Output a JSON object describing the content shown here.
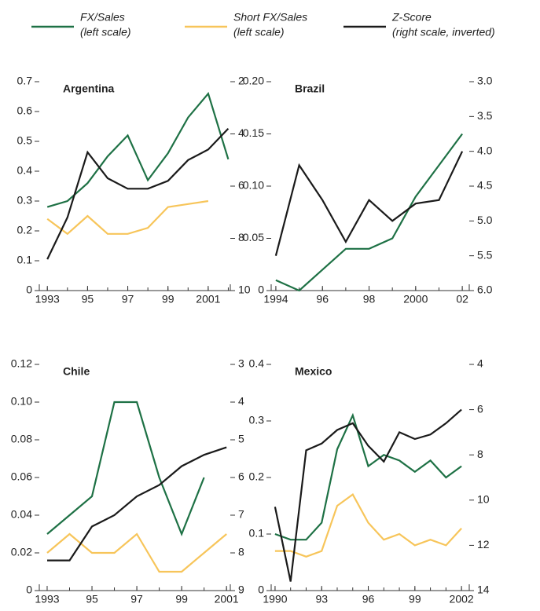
{
  "legend": [
    {
      "name": "FX/Sales",
      "note": "(left scale)",
      "color": "#1e7145"
    },
    {
      "name": "Short FX/Sales",
      "note": "(left scale)",
      "color": "#f7c55a"
    },
    {
      "name": "Z-Score",
      "note": "(right scale, inverted)",
      "color": "#1a1a1a"
    }
  ],
  "chart_data": [
    {
      "type": "line",
      "title": "Argentina",
      "x": [
        1993,
        1994,
        1995,
        1996,
        1997,
        1998,
        1999,
        2000,
        2001,
        2002
      ],
      "xlim": [
        1992.6,
        2002.1
      ],
      "xticks": [
        1993,
        {
          "value": 1995,
          "label": "95"
        },
        {
          "value": 1997,
          "label": "97"
        },
        {
          "value": 1999,
          "label": "99"
        },
        2001
      ],
      "ylim": [
        0,
        0.7
      ],
      "yticks": [
        0,
        0.1,
        0.2,
        0.3,
        0.4,
        0.5,
        0.6,
        0.7
      ],
      "y2lim": [
        2,
        10
      ],
      "y2ticks": [
        2,
        4,
        6,
        8,
        10
      ],
      "y2_inverted": true,
      "series": [
        {
          "color": "#1e7145",
          "axis": "y",
          "values": [
            0.28,
            0.3,
            0.36,
            0.45,
            0.52,
            0.37,
            0.46,
            0.58,
            0.66,
            0.44
          ]
        },
        {
          "color": "#f7c55a",
          "axis": "y",
          "values": [
            0.24,
            0.19,
            0.25,
            0.19,
            0.19,
            0.21,
            0.28,
            0.29,
            0.3,
            null
          ]
        },
        {
          "color": "#1a1a1a",
          "axis": "y2",
          "values": [
            8.8,
            7.2,
            4.7,
            5.7,
            6.1,
            6.1,
            5.8,
            5.0,
            4.6,
            3.8
          ]
        }
      ]
    },
    {
      "type": "line",
      "title": "Brazil",
      "x": [
        1994,
        1995,
        1996,
        1997,
        1998,
        1999,
        2000,
        2001,
        2002
      ],
      "xlim": [
        1993.8,
        2002.3
      ],
      "xticks": [
        1994,
        {
          "value": 1996,
          "label": "96"
        },
        {
          "value": 1998,
          "label": "98"
        },
        2000,
        {
          "value": 2002,
          "label": "02"
        }
      ],
      "ylim": [
        0,
        0.2
      ],
      "yticks": [
        0,
        0.05,
        {
          "value": 0.1,
          "label": "0.10"
        },
        0.15,
        {
          "value": 0.2,
          "label": "0.20"
        }
      ],
      "y2lim": [
        3,
        6
      ],
      "y2ticks": [
        {
          "value": 3,
          "label": "3.0"
        },
        3.5,
        {
          "value": 4,
          "label": "4.0"
        },
        4.5,
        {
          "value": 5,
          "label": "5.0"
        },
        5.5,
        {
          "value": 6,
          "label": "6.0"
        }
      ],
      "y2_inverted": true,
      "series": [
        {
          "color": "#1e7145",
          "axis": "y",
          "values": [
            0.01,
            0,
            0.02,
            0.04,
            0.04,
            0.05,
            0.09,
            0.12,
            0.15
          ]
        },
        {
          "color": "#1a1a1a",
          "axis": "y2",
          "values": [
            5.5,
            4.2,
            4.7,
            5.3,
            4.7,
            5.0,
            4.75,
            4.7,
            4.0
          ]
        }
      ]
    },
    {
      "type": "line",
      "title": "Chile",
      "x": [
        1993,
        1994,
        1995,
        1996,
        1997,
        1998,
        1999,
        2000,
        2001
      ],
      "xlim": [
        1992.65,
        2001.17
      ],
      "xticks": [
        1993,
        {
          "value": 1995,
          "label": "95"
        },
        {
          "value": 1997,
          "label": "97"
        },
        {
          "value": 1999,
          "label": "99"
        },
        2001
      ],
      "ylim": [
        0,
        0.12
      ],
      "yticks": [
        0,
        0.02,
        0.04,
        0.06,
        0.08,
        {
          "value": 0.1,
          "label": "0.10"
        },
        0.12
      ],
      "y2lim": [
        3,
        9
      ],
      "y2ticks": [
        3,
        4,
        5,
        6,
        7,
        8,
        9
      ],
      "y2_inverted": true,
      "series": [
        {
          "color": "#1e7145",
          "axis": "y",
          "values": [
            0.03,
            0.04,
            0.05,
            0.1,
            0.1,
            0.06,
            0.03,
            0.06,
            null
          ]
        },
        {
          "color": "#f7c55a",
          "axis": "y",
          "values": [
            0.02,
            0.03,
            0.02,
            0.02,
            0.03,
            0.01,
            0.01,
            0.02,
            0.03
          ]
        },
        {
          "color": "#1a1a1a",
          "axis": "y2",
          "values": [
            8.2,
            8.2,
            7.3,
            7.0,
            6.5,
            6.2,
            5.7,
            5.4,
            5.2
          ]
        }
      ]
    },
    {
      "type": "line",
      "title": "Mexico",
      "x": [
        1990,
        1991,
        1992,
        1993,
        1994,
        1995,
        1996,
        1997,
        1998,
        1999,
        2000,
        2001,
        2002
      ],
      "xlim": [
        1989.75,
        2002.5
      ],
      "xticks": [
        1990,
        {
          "value": 1993,
          "label": "93"
        },
        {
          "value": 1996,
          "label": "96"
        },
        {
          "value": 1999,
          "label": "99"
        },
        2002
      ],
      "ylim": [
        0,
        0.4
      ],
      "yticks": [
        0,
        0.1,
        0.2,
        0.3,
        0.4
      ],
      "y2lim": [
        4,
        14
      ],
      "y2ticks": [
        4,
        6,
        8,
        10,
        12,
        14
      ],
      "y2_inverted": true,
      "series": [
        {
          "color": "#1e7145",
          "axis": "y",
          "values": [
            0.1,
            0.09,
            0.09,
            0.12,
            0.25,
            0.31,
            0.22,
            0.24,
            0.23,
            0.21,
            0.23,
            0.2,
            0.22
          ]
        },
        {
          "color": "#f7c55a",
          "axis": "y",
          "values": [
            0.07,
            0.07,
            0.06,
            0.07,
            0.15,
            0.17,
            0.12,
            0.09,
            0.1,
            0.08,
            0.09,
            0.08,
            0.11
          ]
        },
        {
          "color": "#1a1a1a",
          "axis": "y2",
          "values": [
            10.3,
            13.6,
            7.8,
            7.5,
            6.9,
            6.6,
            7.6,
            8.3,
            7.0,
            7.3,
            7.1,
            6.6,
            6.0
          ]
        }
      ]
    }
  ]
}
